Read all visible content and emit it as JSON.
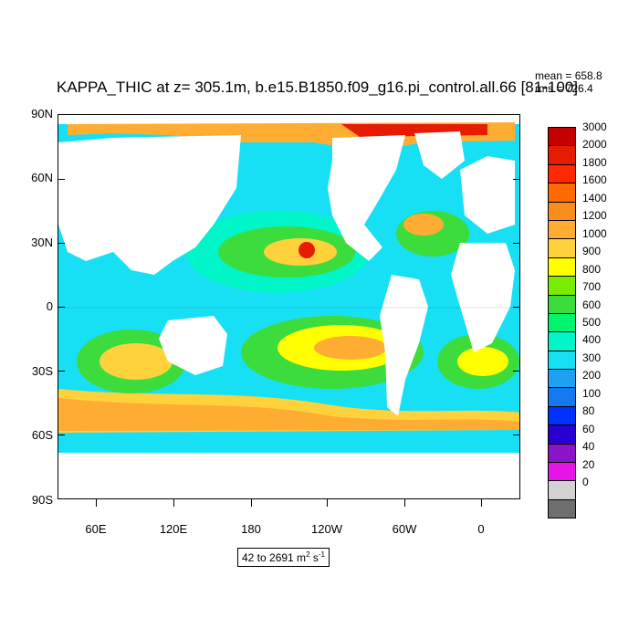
{
  "title": "KAPPA_THIC at z= 305.1m, b.e15.B1850.f09_g16.pi_control.all.66 [81-100]",
  "stats": {
    "mean": "mean = 658.8",
    "rms": "rms = 726.4"
  },
  "map": {
    "y_labels": [
      "90N",
      "60N",
      "30N",
      "0",
      "30S",
      "60S",
      "90S"
    ],
    "x_labels": [
      "60E",
      "120E",
      "180",
      "120W",
      "60W",
      "0"
    ],
    "ocean_color": "#17e0f5",
    "land_color": "#ffffff"
  },
  "colorbar": {
    "levels": [
      "3000",
      "2000",
      "1800",
      "1600",
      "1400",
      "1200",
      "1000",
      "900",
      "800",
      "700",
      "600",
      "500",
      "400",
      "300",
      "200",
      "100",
      "80",
      "60",
      "40",
      "20",
      "0"
    ],
    "colors": [
      "#c40000",
      "#e61c00",
      "#ff2800",
      "#ff6a00",
      "#f88c1c",
      "#ffad32",
      "#ffd23c",
      "#ffff00",
      "#78ed00",
      "#3cdc3c",
      "#00f56e",
      "#00f5c8",
      "#17e0f5",
      "#1ea0f5",
      "#1478f0",
      "#0032ff",
      "#2800d2",
      "#8c14c8",
      "#e614e6",
      "#d2d2d2",
      "#6e6e6e"
    ]
  },
  "range": {
    "text": "42 to 2691 m",
    "sup1": "2",
    "s": " s",
    "sup2": "-1"
  }
}
